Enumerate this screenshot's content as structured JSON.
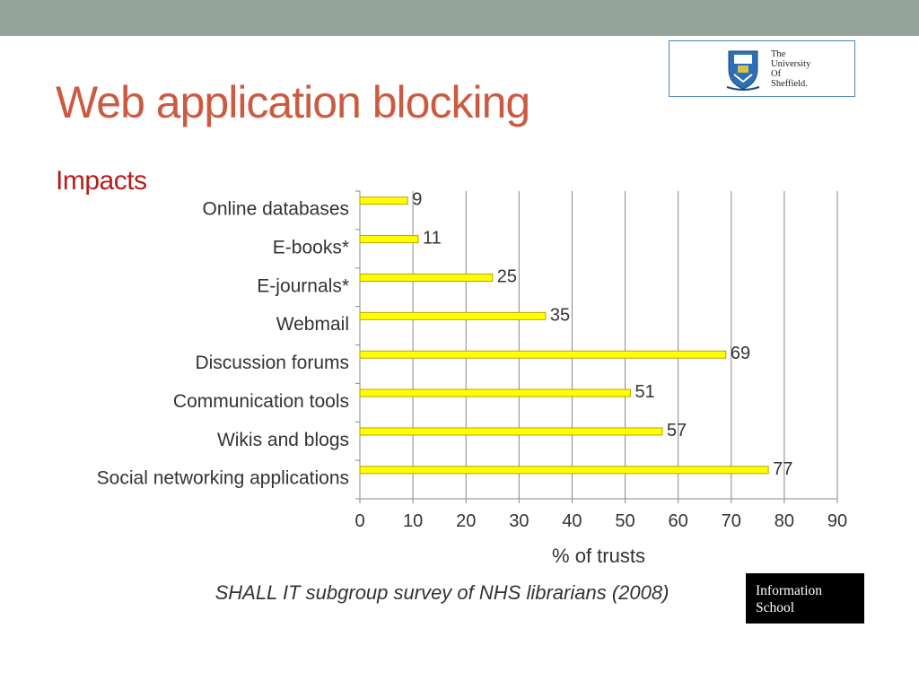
{
  "slide": {
    "title": "Web application blocking",
    "subtitle": "Impacts",
    "caption": "SHALL IT subgroup survey of NHS librarians (2008)",
    "logo": {
      "line1": "The",
      "line2": "University",
      "line3": "Of",
      "line4": "Sheffield."
    },
    "info_box": {
      "line1": "Information",
      "line2": "School"
    }
  },
  "colors": {
    "topbar": "#93a39a",
    "title": "#cc5a41",
    "subtitle": "#b81c1c",
    "bar_fill": "#ffff00",
    "bar_stroke": "#b8a300",
    "grid": "#888888",
    "text": "#333333"
  },
  "chart_data": {
    "type": "bar",
    "orientation": "horizontal",
    "categories": [
      "Online databases",
      "E-books*",
      "E-journals*",
      "Webmail",
      "Discussion forums",
      "Communication tools",
      "Wikis and blogs",
      "Social networking applications"
    ],
    "values": [
      9,
      11,
      25,
      35,
      69,
      51,
      57,
      77
    ],
    "xlabel": "% of trusts",
    "xlim": [
      0,
      90
    ],
    "xticks": [
      0,
      10,
      20,
      30,
      40,
      50,
      60,
      70,
      80,
      90
    ],
    "grid": "vertical",
    "data_labels": true,
    "legend": "none"
  }
}
